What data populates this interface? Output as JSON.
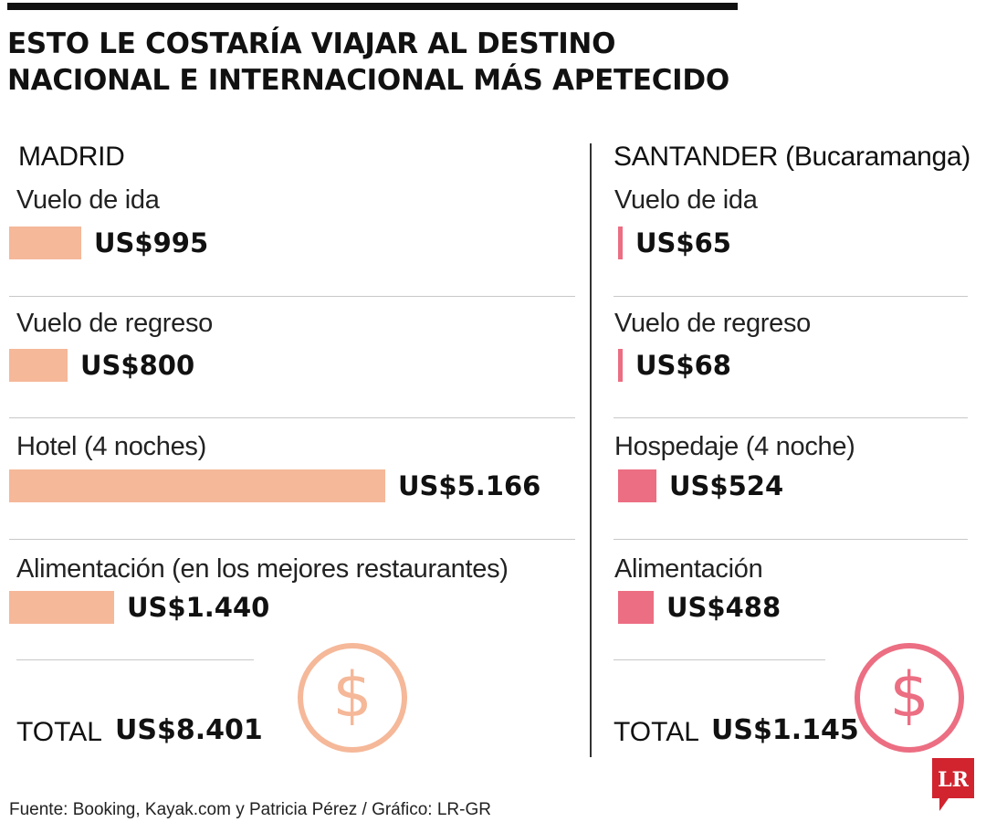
{
  "title": {
    "line1": "ESTO LE COSTARÍA VIAJAR AL DESTINO",
    "line2": "NACIONAL E INTERNACIONAL MÁS APETECIDO"
  },
  "chart_data": {
    "type": "bar",
    "orientation": "horizontal",
    "panels": [
      {
        "heading": "MADRID",
        "color": "#f5b899",
        "items": [
          {
            "label": "Vuelo de ida",
            "value": 995,
            "value_label": "US$995"
          },
          {
            "label": "Vuelo de regreso",
            "value": 800,
            "value_label": "US$800"
          },
          {
            "label": "Hotel (4 noches)",
            "value": 5166,
            "value_label": "US$5.166"
          },
          {
            "label": "Alimentación (en los mejores restaurantes)",
            "value": 1440,
            "value_label": "US$1.440"
          }
        ],
        "total_label": "TOTAL",
        "total_value": "US$8.401",
        "icon": "dollar-coin-icon"
      },
      {
        "heading": "SANTANDER (Bucaramanga)",
        "color": "#ec6e82",
        "items": [
          {
            "label": "Vuelo de ida",
            "value": 65,
            "value_label": "US$65"
          },
          {
            "label": "Vuelo de regreso",
            "value": 68,
            "value_label": "US$68"
          },
          {
            "label": "Hospedaje (4 noche)",
            "value": 524,
            "value_label": "US$524"
          },
          {
            "label": "Alimentación",
            "value": 488,
            "value_label": "US$488"
          }
        ],
        "total_label": "TOTAL",
        "total_value": "US$1.145",
        "icon": "dollar-coin-icon"
      }
    ]
  },
  "footer": {
    "source": "Fuente: Booking, Kayak.com y Patricia Pérez / Gráfico: LR-GR"
  },
  "logo": {
    "text": "LR",
    "color": "#d1242f",
    "icon": "lr-logo-icon"
  }
}
